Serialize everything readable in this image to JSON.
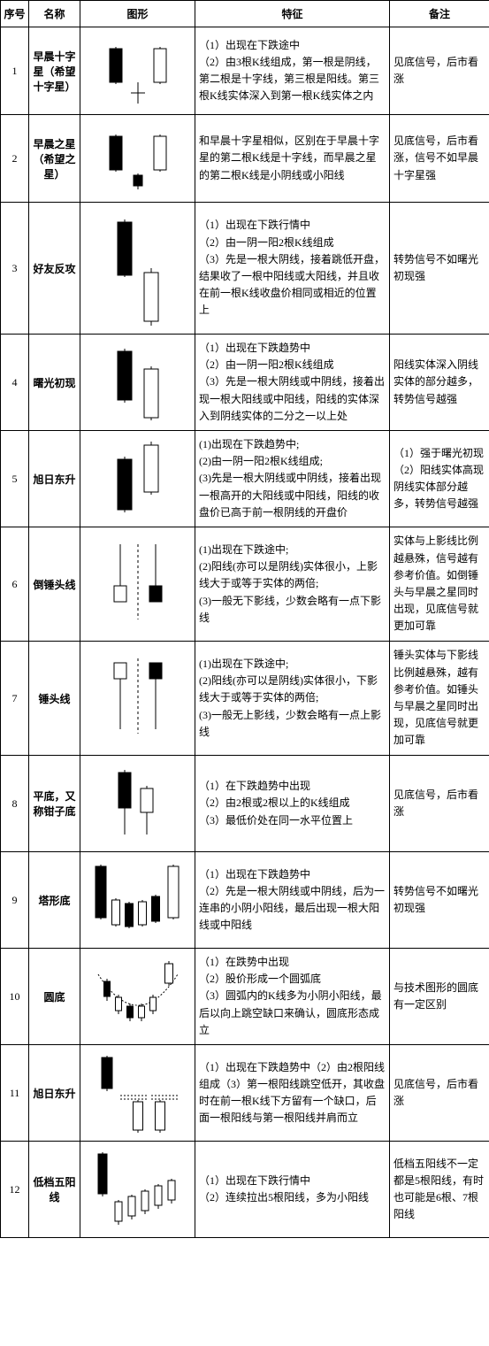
{
  "columns": [
    "序号",
    "名称",
    "图形",
    "特征",
    "备注"
  ],
  "rows": [
    {
      "idx": "1",
      "name": "早晨十字星（希望十字星）",
      "features": [
        "（1）出现在下跌途中",
        "（2）由3根K线组成，第一根是阴线，第二根是十字线，第三根是阳线。第三根K线实体深入到第一根K线实体之内"
      ],
      "note": "见底信号，后市看涨",
      "fig": "morning_doji"
    },
    {
      "idx": "2",
      "name": "早晨之星（希望之星）",
      "features": [
        "和早晨十字星相似，区别在于早晨十字星的第二根K线是十字线，而早晨之星的第二根K线是小阴线或小阳线"
      ],
      "note": "见底信号，后市看涨，信号不如早晨十字星强",
      "fig": "morning_star"
    },
    {
      "idx": "3",
      "name": "好友反攻",
      "features": [
        "（1）出现在下跌行情中",
        "（2）由一阴一阳2根K线组成",
        "（3）先是一根大阴线，接着跳低开盘，结果收了一根中阳线或大阳线，并且收在前一根K线收盘价相同或相近的位置上"
      ],
      "note": "转势信号不如曙光初现强",
      "fig": "friend_counter"
    },
    {
      "idx": "4",
      "name": "曙光初现",
      "features": [
        "（1）出现在下跌趋势中",
        "（2）由一阴一阳2根K线组成",
        "（3）先是一根大阴线或中阴线，接着出现一根大阳线或中阳线，阳线的实体深入到阴线实体的二分之一以上处"
      ],
      "note": "阳线实体深入阴线实体的部分越多，转势信号越强",
      "fig": "dawn"
    },
    {
      "idx": "5",
      "name": "旭日东升",
      "features": [
        "(1)出现在下跌趋势中;",
        "(2)由一阴一阳2根K线组成;",
        "(3)先是一根大阴线或中阴线，接着出现一根高开的大阳线或中阳线，阳线的收盘价已高于前一根阴线的开盘价"
      ],
      "note": "（1）强于曙光初现\n（2）阳线实体高现阴线实体部分越多，转势信号越强",
      "fig": "sunrise"
    },
    {
      "idx": "6",
      "name": "倒锤头线",
      "features": [
        "(1)出现在下跌途中;",
        "(2)阳线(亦可以是阴线)实体很小，上影线大于或等于实体的两倍;",
        "(3)一般无下影线，少数会略有一点下影线"
      ],
      "note": "实体与上影线比例越悬殊，信号越有参考价值。如倒锤头与早晨之星同时出现，见底信号就更加可靠",
      "fig": "inv_hammer"
    },
    {
      "idx": "7",
      "name": "锤头线",
      "features": [
        "(1)出现在下跌途中;",
        "(2)阳线(亦可以是阴线)实体很小，下影线大于或等于实体的两倍;",
        "(3)一般无上影线，少数会略有一点上影线"
      ],
      "note": "锤头实体与下影线比例越悬殊，越有参考价值。如锤头与早晨之星同时出现，见底信号就更加可靠",
      "fig": "hammer"
    },
    {
      "idx": "8",
      "name": "平底，又称钳子底",
      "features": [
        "（1）在下跌趋势中出现",
        "（2）由2根或2根以上的K线组成",
        "（3）最低价处在同一水平位置上"
      ],
      "note": "见底信号，后市看涨",
      "fig": "tweezer"
    },
    {
      "idx": "9",
      "name": "塔形底",
      "features": [
        "（1）出现在下跌趋势中",
        "（2）先是一根大阴线或中阴线，后为一连串的小阴小阳线，最后出现一根大阳线或中阳线"
      ],
      "note": "转势信号不如曙光初现强",
      "fig": "tower"
    },
    {
      "idx": "10",
      "name": "圆底",
      "features": [
        "（1）在跌势中出现",
        "（2）股价形成一个圆弧底",
        "（3）圆弧内的K线多为小阴小阳线，最后以向上跳空缺口来确认，圆底形态成立"
      ],
      "note": "与技术图形的圆底有一定区别",
      "fig": "round"
    },
    {
      "idx": "11",
      "name": "旭日东升",
      "features": [
        "（1）出现在下跌趋势中（2）由2根阳线组成（3）第一根阳线跳空低开，其收盘时在前一根K线下方留有一个缺口，后面一根阳线与第一根阳线并肩而立"
      ],
      "note": "见底信号，后市看涨",
      "fig": "side_white"
    },
    {
      "idx": "12",
      "name": "低档五阳线",
      "features": [
        "（1）出现在下跌行情中",
        "（2）连续拉出5根阳线，多为小阳线"
      ],
      "note": "低档五阳线不一定都是5根阳线，有时也可能是6根、7根阳线",
      "fig": "five_white"
    }
  ],
  "figs": {
    "stroke": "#000000",
    "fill_black": "#000000",
    "fill_white": "#ffffff"
  }
}
